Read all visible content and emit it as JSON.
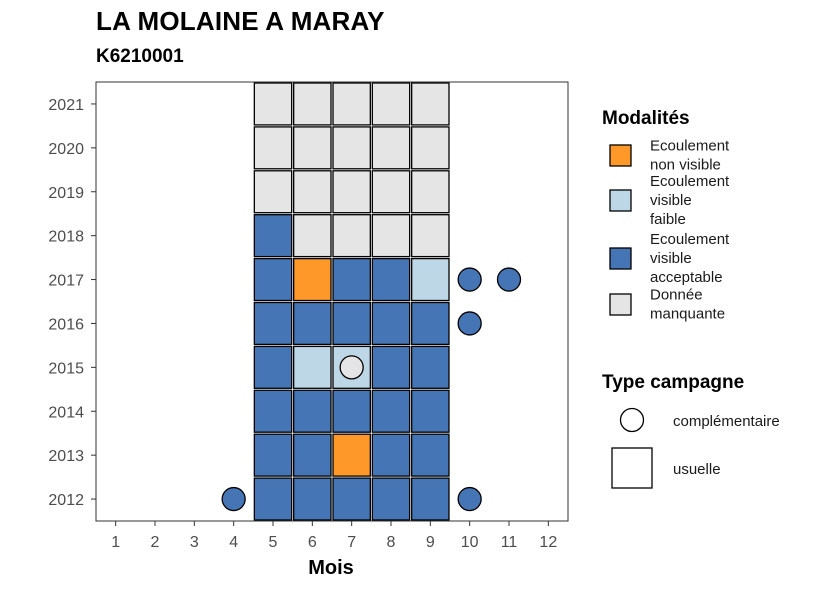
{
  "title": "LA MOLAINE A MARAY",
  "subtitle": "K6210001",
  "chart_data": {
    "type": "heatmap",
    "xlabel": "Mois",
    "ylabel": "",
    "x_ticks": [
      1,
      2,
      3,
      4,
      5,
      6,
      7,
      8,
      9,
      10,
      11,
      12
    ],
    "y_ticks": [
      "2012",
      "2013",
      "2014",
      "2015",
      "2016",
      "2017",
      "2018",
      "2019",
      "2020",
      "2021"
    ],
    "xlim": [
      0.5,
      12.5
    ],
    "ylim": [
      2011.5,
      2021.5
    ],
    "grid": false,
    "legend_position": "right",
    "modalities": [
      {
        "key": "non_visible",
        "label": "Ecoulement non visible",
        "color": "#FE9929"
      },
      {
        "key": "faible",
        "label": "Ecoulement visible faible",
        "color": "#BDD7E7"
      },
      {
        "key": "acceptable",
        "label": "Ecoulement visible acceptable",
        "color": "#4575B4"
      },
      {
        "key": "manquante",
        "label": "Donnée manquante",
        "color": "#E5E5E5"
      }
    ],
    "legend_modalities_title": "Modalités",
    "legend_modalities_lines": [
      [
        "Ecoulement",
        "non visible"
      ],
      [
        "Ecoulement",
        "visible",
        "faible"
      ],
      [
        "Ecoulement",
        "visible",
        "acceptable"
      ],
      [
        "Donnée",
        "manquante"
      ]
    ],
    "campaign_types": [
      {
        "key": "complementaire",
        "label": "complémentaire",
        "shape": "circle"
      },
      {
        "key": "usuelle",
        "label": "usuelle",
        "shape": "square"
      }
    ],
    "legend_campaign_title": "Type campagne",
    "observations": [
      {
        "year": 2012,
        "month": 4,
        "modality": "acceptable",
        "campaign": "complementaire"
      },
      {
        "year": 2012,
        "month": 5,
        "modality": "acceptable",
        "campaign": "usuelle"
      },
      {
        "year": 2012,
        "month": 6,
        "modality": "acceptable",
        "campaign": "usuelle"
      },
      {
        "year": 2012,
        "month": 7,
        "modality": "acceptable",
        "campaign": "usuelle"
      },
      {
        "year": 2012,
        "month": 8,
        "modality": "acceptable",
        "campaign": "usuelle"
      },
      {
        "year": 2012,
        "month": 9,
        "modality": "acceptable",
        "campaign": "usuelle"
      },
      {
        "year": 2012,
        "month": 10,
        "modality": "acceptable",
        "campaign": "complementaire"
      },
      {
        "year": 2013,
        "month": 5,
        "modality": "acceptable",
        "campaign": "usuelle"
      },
      {
        "year": 2013,
        "month": 6,
        "modality": "acceptable",
        "campaign": "usuelle"
      },
      {
        "year": 2013,
        "month": 7,
        "modality": "non_visible",
        "campaign": "usuelle"
      },
      {
        "year": 2013,
        "month": 8,
        "modality": "acceptable",
        "campaign": "usuelle"
      },
      {
        "year": 2013,
        "month": 9,
        "modality": "acceptable",
        "campaign": "usuelle"
      },
      {
        "year": 2014,
        "month": 5,
        "modality": "acceptable",
        "campaign": "usuelle"
      },
      {
        "year": 2014,
        "month": 6,
        "modality": "acceptable",
        "campaign": "usuelle"
      },
      {
        "year": 2014,
        "month": 7,
        "modality": "acceptable",
        "campaign": "usuelle"
      },
      {
        "year": 2014,
        "month": 8,
        "modality": "acceptable",
        "campaign": "usuelle"
      },
      {
        "year": 2014,
        "month": 9,
        "modality": "acceptable",
        "campaign": "usuelle"
      },
      {
        "year": 2015,
        "month": 5,
        "modality": "acceptable",
        "campaign": "usuelle"
      },
      {
        "year": 2015,
        "month": 6,
        "modality": "faible",
        "campaign": "usuelle"
      },
      {
        "year": 2015,
        "month": 7,
        "modality": "faible",
        "campaign": "usuelle"
      },
      {
        "year": 2015,
        "month": 7,
        "modality": "manquante",
        "campaign": "complementaire"
      },
      {
        "year": 2015,
        "month": 8,
        "modality": "acceptable",
        "campaign": "usuelle"
      },
      {
        "year": 2015,
        "month": 9,
        "modality": "acceptable",
        "campaign": "usuelle"
      },
      {
        "year": 2016,
        "month": 5,
        "modality": "acceptable",
        "campaign": "usuelle"
      },
      {
        "year": 2016,
        "month": 6,
        "modality": "acceptable",
        "campaign": "usuelle"
      },
      {
        "year": 2016,
        "month": 7,
        "modality": "acceptable",
        "campaign": "usuelle"
      },
      {
        "year": 2016,
        "month": 8,
        "modality": "acceptable",
        "campaign": "usuelle"
      },
      {
        "year": 2016,
        "month": 9,
        "modality": "acceptable",
        "campaign": "usuelle"
      },
      {
        "year": 2016,
        "month": 10,
        "modality": "acceptable",
        "campaign": "complementaire"
      },
      {
        "year": 2017,
        "month": 5,
        "modality": "acceptable",
        "campaign": "usuelle"
      },
      {
        "year": 2017,
        "month": 6,
        "modality": "non_visible",
        "campaign": "usuelle"
      },
      {
        "year": 2017,
        "month": 7,
        "modality": "acceptable",
        "campaign": "usuelle"
      },
      {
        "year": 2017,
        "month": 8,
        "modality": "acceptable",
        "campaign": "usuelle"
      },
      {
        "year": 2017,
        "month": 9,
        "modality": "faible",
        "campaign": "usuelle"
      },
      {
        "year": 2017,
        "month": 10,
        "modality": "acceptable",
        "campaign": "complementaire"
      },
      {
        "year": 2017,
        "month": 11,
        "modality": "acceptable",
        "campaign": "complementaire"
      },
      {
        "year": 2018,
        "month": 5,
        "modality": "acceptable",
        "campaign": "usuelle"
      },
      {
        "year": 2018,
        "month": 6,
        "modality": "manquante",
        "campaign": "usuelle"
      },
      {
        "year": 2018,
        "month": 7,
        "modality": "manquante",
        "campaign": "usuelle"
      },
      {
        "year": 2018,
        "month": 8,
        "modality": "manquante",
        "campaign": "usuelle"
      },
      {
        "year": 2018,
        "month": 9,
        "modality": "manquante",
        "campaign": "usuelle"
      },
      {
        "year": 2019,
        "month": 5,
        "modality": "manquante",
        "campaign": "usuelle"
      },
      {
        "year": 2019,
        "month": 6,
        "modality": "manquante",
        "campaign": "usuelle"
      },
      {
        "year": 2019,
        "month": 7,
        "modality": "manquante",
        "campaign": "usuelle"
      },
      {
        "year": 2019,
        "month": 8,
        "modality": "manquante",
        "campaign": "usuelle"
      },
      {
        "year": 2019,
        "month": 9,
        "modality": "manquante",
        "campaign": "usuelle"
      },
      {
        "year": 2020,
        "month": 5,
        "modality": "manquante",
        "campaign": "usuelle"
      },
      {
        "year": 2020,
        "month": 6,
        "modality": "manquante",
        "campaign": "usuelle"
      },
      {
        "year": 2020,
        "month": 7,
        "modality": "manquante",
        "campaign": "usuelle"
      },
      {
        "year": 2020,
        "month": 8,
        "modality": "manquante",
        "campaign": "usuelle"
      },
      {
        "year": 2020,
        "month": 9,
        "modality": "manquante",
        "campaign": "usuelle"
      },
      {
        "year": 2021,
        "month": 5,
        "modality": "manquante",
        "campaign": "usuelle"
      },
      {
        "year": 2021,
        "month": 6,
        "modality": "manquante",
        "campaign": "usuelle"
      },
      {
        "year": 2021,
        "month": 7,
        "modality": "manquante",
        "campaign": "usuelle"
      },
      {
        "year": 2021,
        "month": 8,
        "modality": "manquante",
        "campaign": "usuelle"
      },
      {
        "year": 2021,
        "month": 9,
        "modality": "manquante",
        "campaign": "usuelle"
      }
    ]
  }
}
